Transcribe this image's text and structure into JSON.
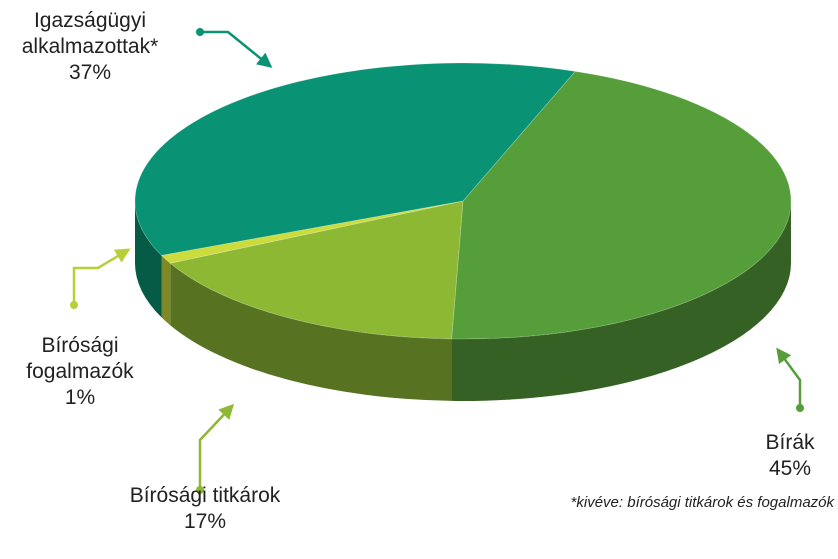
{
  "chart_data": {
    "type": "pie",
    "categories": [
      "Bírák",
      "Bírósági titkárok",
      "Bírósági fogalmazók",
      "Igazságügyi alkalmazottak*"
    ],
    "values": [
      45,
      17,
      1,
      37
    ],
    "value_labels": [
      "45%",
      "17%",
      "1%",
      "37%"
    ],
    "colors": [
      "#559e3a",
      "#8cb833",
      "#cbdc3c",
      "#099273"
    ],
    "note": "*kivéve: bírósági titkárok és fogalmazók"
  }
}
